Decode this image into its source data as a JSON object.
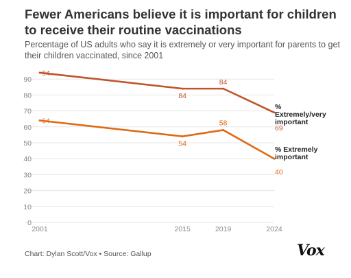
{
  "chart_data": {
    "type": "line",
    "title": "Fewer Americans believe it is important for children to receive their routine vaccinations",
    "subtitle": "Percentage of US adults who say it is extremely or very important for parents to get their children vaccinated, since 2001",
    "x": [
      2001,
      2015,
      2019,
      2024
    ],
    "x_tick_labels": [
      "2001",
      "2015",
      "2019",
      "2024"
    ],
    "ylim": [
      0,
      100
    ],
    "y_ticks": [
      0,
      10,
      20,
      30,
      40,
      50,
      60,
      70,
      80,
      90
    ],
    "grid": true,
    "legend": "direct-labels-right",
    "series": [
      {
        "name": "% Extremely/very important",
        "label_lines": [
          "%",
          "Extremely/very",
          "important"
        ],
        "values": [
          94,
          84,
          84,
          69
        ],
        "value_labels": [
          "94",
          "84",
          "84",
          "69"
        ],
        "color": "#c0532a"
      },
      {
        "name": "% Extremely important",
        "label_lines": [
          "% Extremely",
          "important"
        ],
        "values": [
          64,
          54,
          58,
          40
        ],
        "value_labels": [
          "64",
          "54",
          "58",
          "40"
        ],
        "color": "#e06a14"
      }
    ]
  },
  "footer": {
    "credit": "Chart: Dylan Scott/Vox • Source: Gallup",
    "logo": "Vox"
  },
  "colors": {
    "grid": "#e5e5e5",
    "axis_text": "#8a8a8a",
    "label_text": "#222222"
  }
}
